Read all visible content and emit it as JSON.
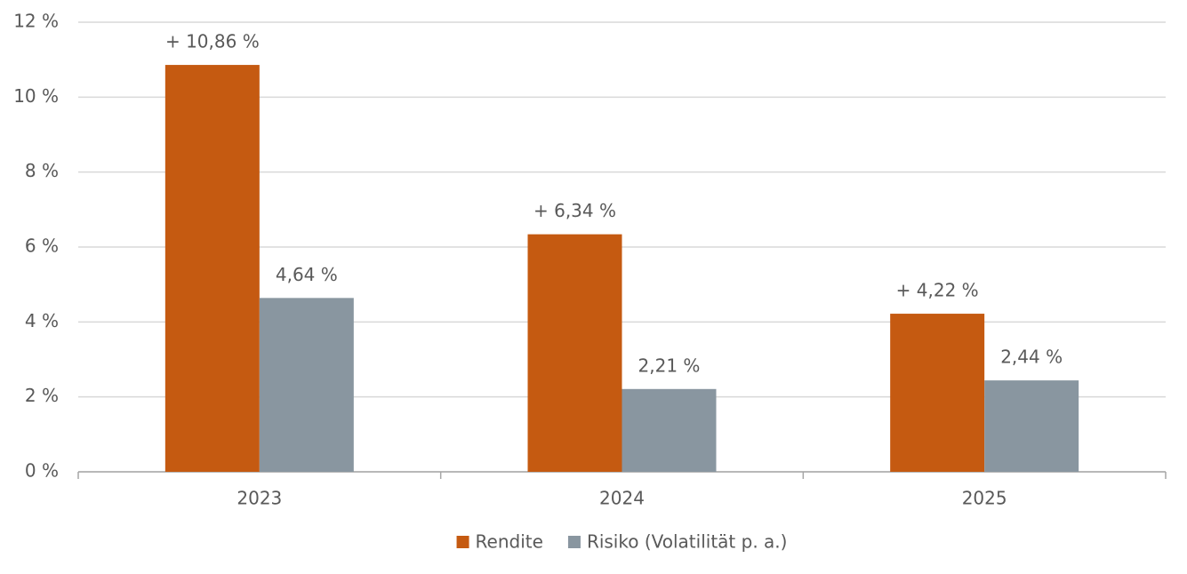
{
  "chart_data": {
    "type": "bar",
    "categories": [
      "2023",
      "2024",
      "2025"
    ],
    "series": [
      {
        "name": "Rendite",
        "color": "#c55a11",
        "values": [
          10.86,
          6.34,
          4.22
        ],
        "value_labels": [
          "+ 10,86 %",
          "+ 6,34 %",
          "+ 4,22 %"
        ]
      },
      {
        "name": "Risiko (Volatilität p. a.)",
        "color": "#8996a0",
        "values": [
          4.64,
          2.21,
          2.44
        ],
        "value_labels": [
          "4,64 %",
          "2,21 %",
          "2,44 %"
        ]
      }
    ],
    "ylim": [
      0,
      12
    ],
    "yticks": [
      {
        "value": 0,
        "label": "0 %"
      },
      {
        "value": 2,
        "label": "2 %"
      },
      {
        "value": 4,
        "label": "4 %"
      },
      {
        "value": 6,
        "label": "6 %"
      },
      {
        "value": 8,
        "label": "8 %"
      },
      {
        "value": 10,
        "label": "10 %"
      },
      {
        "value": 12,
        "label": "12 %"
      }
    ],
    "grid": true,
    "legend": "bottom"
  }
}
